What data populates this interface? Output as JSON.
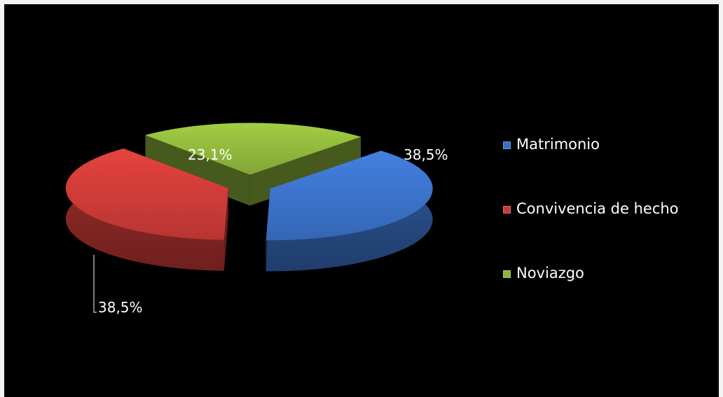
{
  "chart_data": {
    "type": "pie",
    "title": "",
    "categories": [
      "Matrimonio",
      "Convivencia de hecho",
      "Noviazgo"
    ],
    "values": [
      38.5,
      38.5,
      23.1
    ],
    "data_labels": [
      "38,5%",
      "38,5%",
      "23,1%"
    ],
    "colors": [
      "#3A6FC4",
      "#C83A36",
      "#8DB33A"
    ],
    "exploded": true,
    "style_3d": true,
    "legend_position": "right",
    "background": "#000000"
  }
}
